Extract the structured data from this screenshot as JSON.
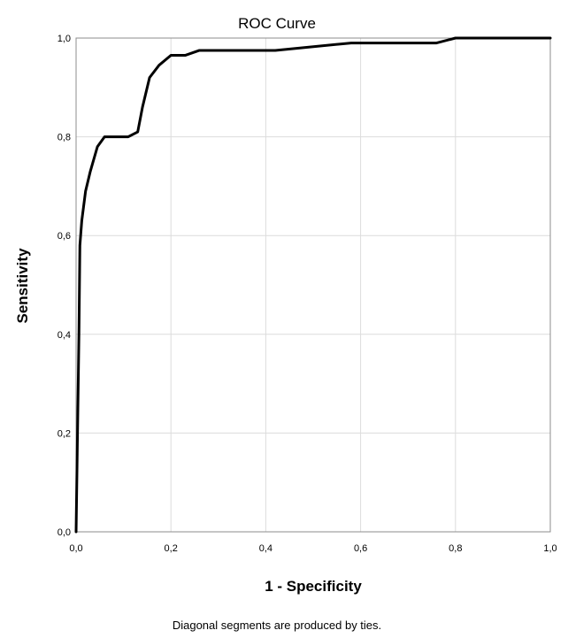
{
  "chart_data": {
    "type": "line",
    "title": "ROC Curve",
    "xlabel": "1 - Specificity",
    "ylabel": "Sensitivity",
    "xlim": [
      0,
      1
    ],
    "ylim": [
      0,
      1
    ],
    "x_ticks": [
      "0,0",
      "0,2",
      "0,4",
      "0,6",
      "0,8",
      "1,0"
    ],
    "y_ticks": [
      "0,0",
      "0,2",
      "0,4",
      "0,6",
      "0,8",
      "1,0"
    ],
    "grid": true,
    "footnote": "Diagonal segments are produced by ties.",
    "series": [
      {
        "x": [
          0.0,
          0.003,
          0.006,
          0.008,
          0.012,
          0.02,
          0.03,
          0.045,
          0.06,
          0.11,
          0.13,
          0.14,
          0.155,
          0.175,
          0.2,
          0.23,
          0.26,
          0.42,
          0.58,
          0.76,
          0.8,
          1.0
        ],
        "y": [
          0.0,
          0.2,
          0.4,
          0.58,
          0.63,
          0.69,
          0.73,
          0.78,
          0.8,
          0.8,
          0.81,
          0.86,
          0.92,
          0.945,
          0.965,
          0.965,
          0.975,
          0.975,
          0.99,
          0.99,
          1.0,
          1.0
        ]
      }
    ]
  }
}
